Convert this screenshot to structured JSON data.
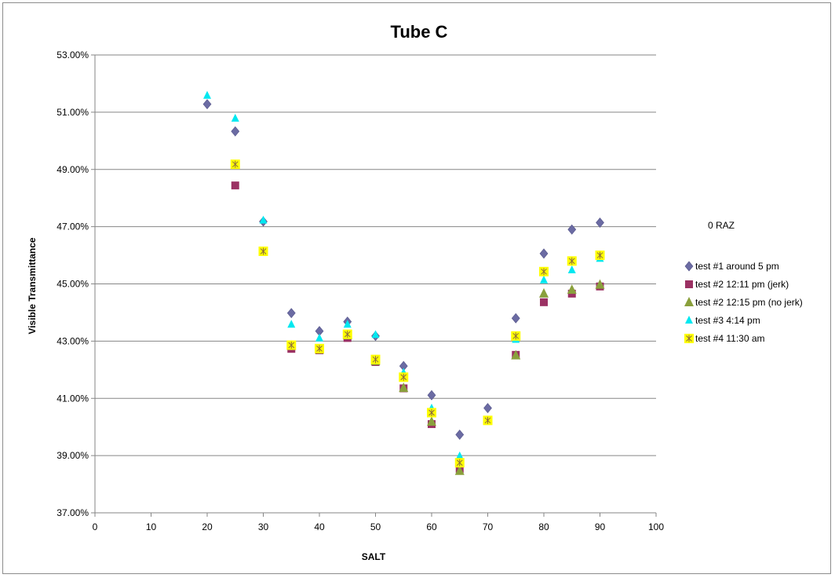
{
  "chart_data": {
    "type": "scatter",
    "title": "Tube C",
    "xlabel": "SALT",
    "ylabel": "Visible Transmittance",
    "xlim": [
      0,
      100
    ],
    "ylim": [
      0.37,
      0.53
    ],
    "x_ticks": [
      "0",
      "10",
      "20",
      "30",
      "40",
      "50",
      "60",
      "70",
      "80",
      "90",
      "100"
    ],
    "x_tick_values": [
      0,
      10,
      20,
      30,
      40,
      50,
      60,
      70,
      80,
      90,
      100
    ],
    "y_ticks": [
      "37.00%",
      "39.00%",
      "41.00%",
      "43.00%",
      "45.00%",
      "47.00%",
      "49.00%",
      "51.00%",
      "53.00%"
    ],
    "y_tick_values": [
      0.37,
      0.39,
      0.41,
      0.43,
      0.45,
      0.47,
      0.49,
      0.51,
      0.53
    ],
    "grid": "horizontal",
    "legend_position": "right",
    "annotation": "0 RAZ",
    "series": [
      {
        "name": "test #1 around 5 pm",
        "marker": "diamond",
        "color": "#6b6ba3",
        "x": [
          20,
          25,
          30,
          35,
          40,
          45,
          50,
          55,
          60,
          65,
          70,
          75,
          80,
          85,
          90
        ],
        "y": [
          0.5128,
          0.5033,
          0.4718,
          0.4398,
          0.4335,
          0.4368,
          0.4318,
          0.4213,
          0.4111,
          0.3973,
          0.4066,
          0.438,
          0.4606,
          0.469,
          0.4714
        ]
      },
      {
        "name": "test #2 12:11 pm (jerk)",
        "marker": "square",
        "color": "#9b3163",
        "x": [
          25,
          35,
          40,
          45,
          50,
          55,
          60,
          65,
          75,
          80,
          85,
          90
        ],
        "y": [
          0.4844,
          0.4273,
          0.4268,
          0.4311,
          0.4227,
          0.4135,
          0.401,
          0.3853,
          0.4252,
          0.4436,
          0.4466,
          0.4491
        ]
      },
      {
        "name": "test #2 12:15 pm (no jerk)",
        "marker": "triangle",
        "color": "#8aa03c",
        "x": [
          35,
          40,
          45,
          50,
          55,
          60,
          65,
          75,
          80,
          85,
          90
        ],
        "y": [
          0.4283,
          0.427,
          0.432,
          0.423,
          0.4136,
          0.4018,
          0.3846,
          0.425,
          0.4466,
          0.4479,
          0.4497
        ]
      },
      {
        "name": "test #3 4:14 pm",
        "marker": "triangle",
        "color": "#00e8f0",
        "x": [
          20,
          25,
          30,
          35,
          40,
          45,
          50,
          55,
          60,
          65,
          70,
          75,
          80,
          85,
          90
        ],
        "y": [
          0.5158,
          0.5078,
          0.4722,
          0.4358,
          0.431,
          0.4358,
          0.4322,
          0.419,
          0.4065,
          0.3898,
          0.402,
          0.4305,
          0.4513,
          0.4548,
          0.4588
        ]
      },
      {
        "name": "test #4 11:30 am",
        "marker": "asterisk-square",
        "color": "#ffff00",
        "x": [
          25,
          30,
          35,
          40,
          45,
          50,
          55,
          60,
          65,
          70,
          75,
          80,
          85,
          90
        ],
        "y": [
          0.4918,
          0.4614,
          0.4286,
          0.4274,
          0.4324,
          0.4236,
          0.4174,
          0.405,
          0.3875,
          0.4023,
          0.4318,
          0.4543,
          0.458,
          0.46
        ]
      }
    ]
  }
}
